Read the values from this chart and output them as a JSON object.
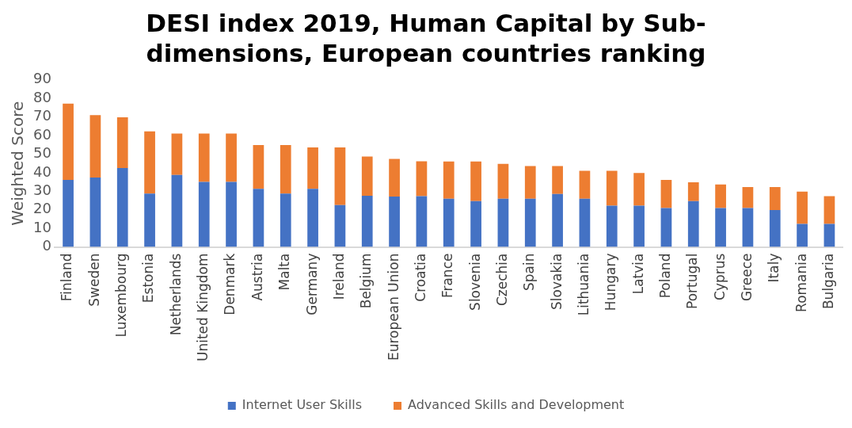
{
  "chart_data": {
    "type": "bar",
    "title": "DESI index 2019, Human Capital by Sub-dimensions, European countries ranking",
    "ylabel": "Weighted Score",
    "categories": [
      "Finland",
      "Sweden",
      "Luxembourg",
      "Estonia",
      "Netherlands",
      "United Kingdom",
      "Denmark",
      "Austria",
      "Malta",
      "Germany",
      "Ireland",
      "Belgium",
      "European Union",
      "Croatia",
      "France",
      "Slovenia",
      "Czechia",
      "Spain",
      "Slovakia",
      "Lithuania",
      "Hungary",
      "Latvia",
      "Poland",
      "Portugal",
      "Cyprus",
      "Greece",
      "Italy",
      "Romania",
      "Bulgaria"
    ],
    "stacked": true,
    "series": [
      {
        "name": "Internet User Skills",
        "color": "#4472c4",
        "values": [
          36.1,
          37.4,
          42.5,
          28.7,
          38.8,
          35.0,
          35.0,
          31.3,
          28.7,
          31.3,
          22.5,
          27.6,
          27.1,
          27.4,
          26.0,
          24.7,
          26.0,
          26.0,
          28.5,
          26.0,
          22.2,
          22.2,
          21.0,
          24.7,
          21.0,
          21.0,
          19.9,
          12.4,
          12.4
        ]
      },
      {
        "name": "Advanced Skills and Development",
        "color": "#ed7d31",
        "values": [
          41.1,
          33.6,
          27.3,
          33.6,
          22.3,
          26.1,
          26.1,
          23.6,
          26.2,
          22.3,
          31.1,
          21.1,
          20.3,
          18.7,
          20.0,
          21.3,
          18.8,
          17.6,
          15.1,
          15.0,
          18.8,
          17.6,
          15.1,
          10.1,
          12.7,
          11.3,
          12.4,
          17.4,
          14.9
        ]
      }
    ],
    "ylim": [
      0,
      90
    ],
    "yticks": [
      0,
      10,
      20,
      30,
      40,
      50,
      60,
      70,
      80,
      90
    ],
    "grid": false,
    "legend": "bottom"
  }
}
